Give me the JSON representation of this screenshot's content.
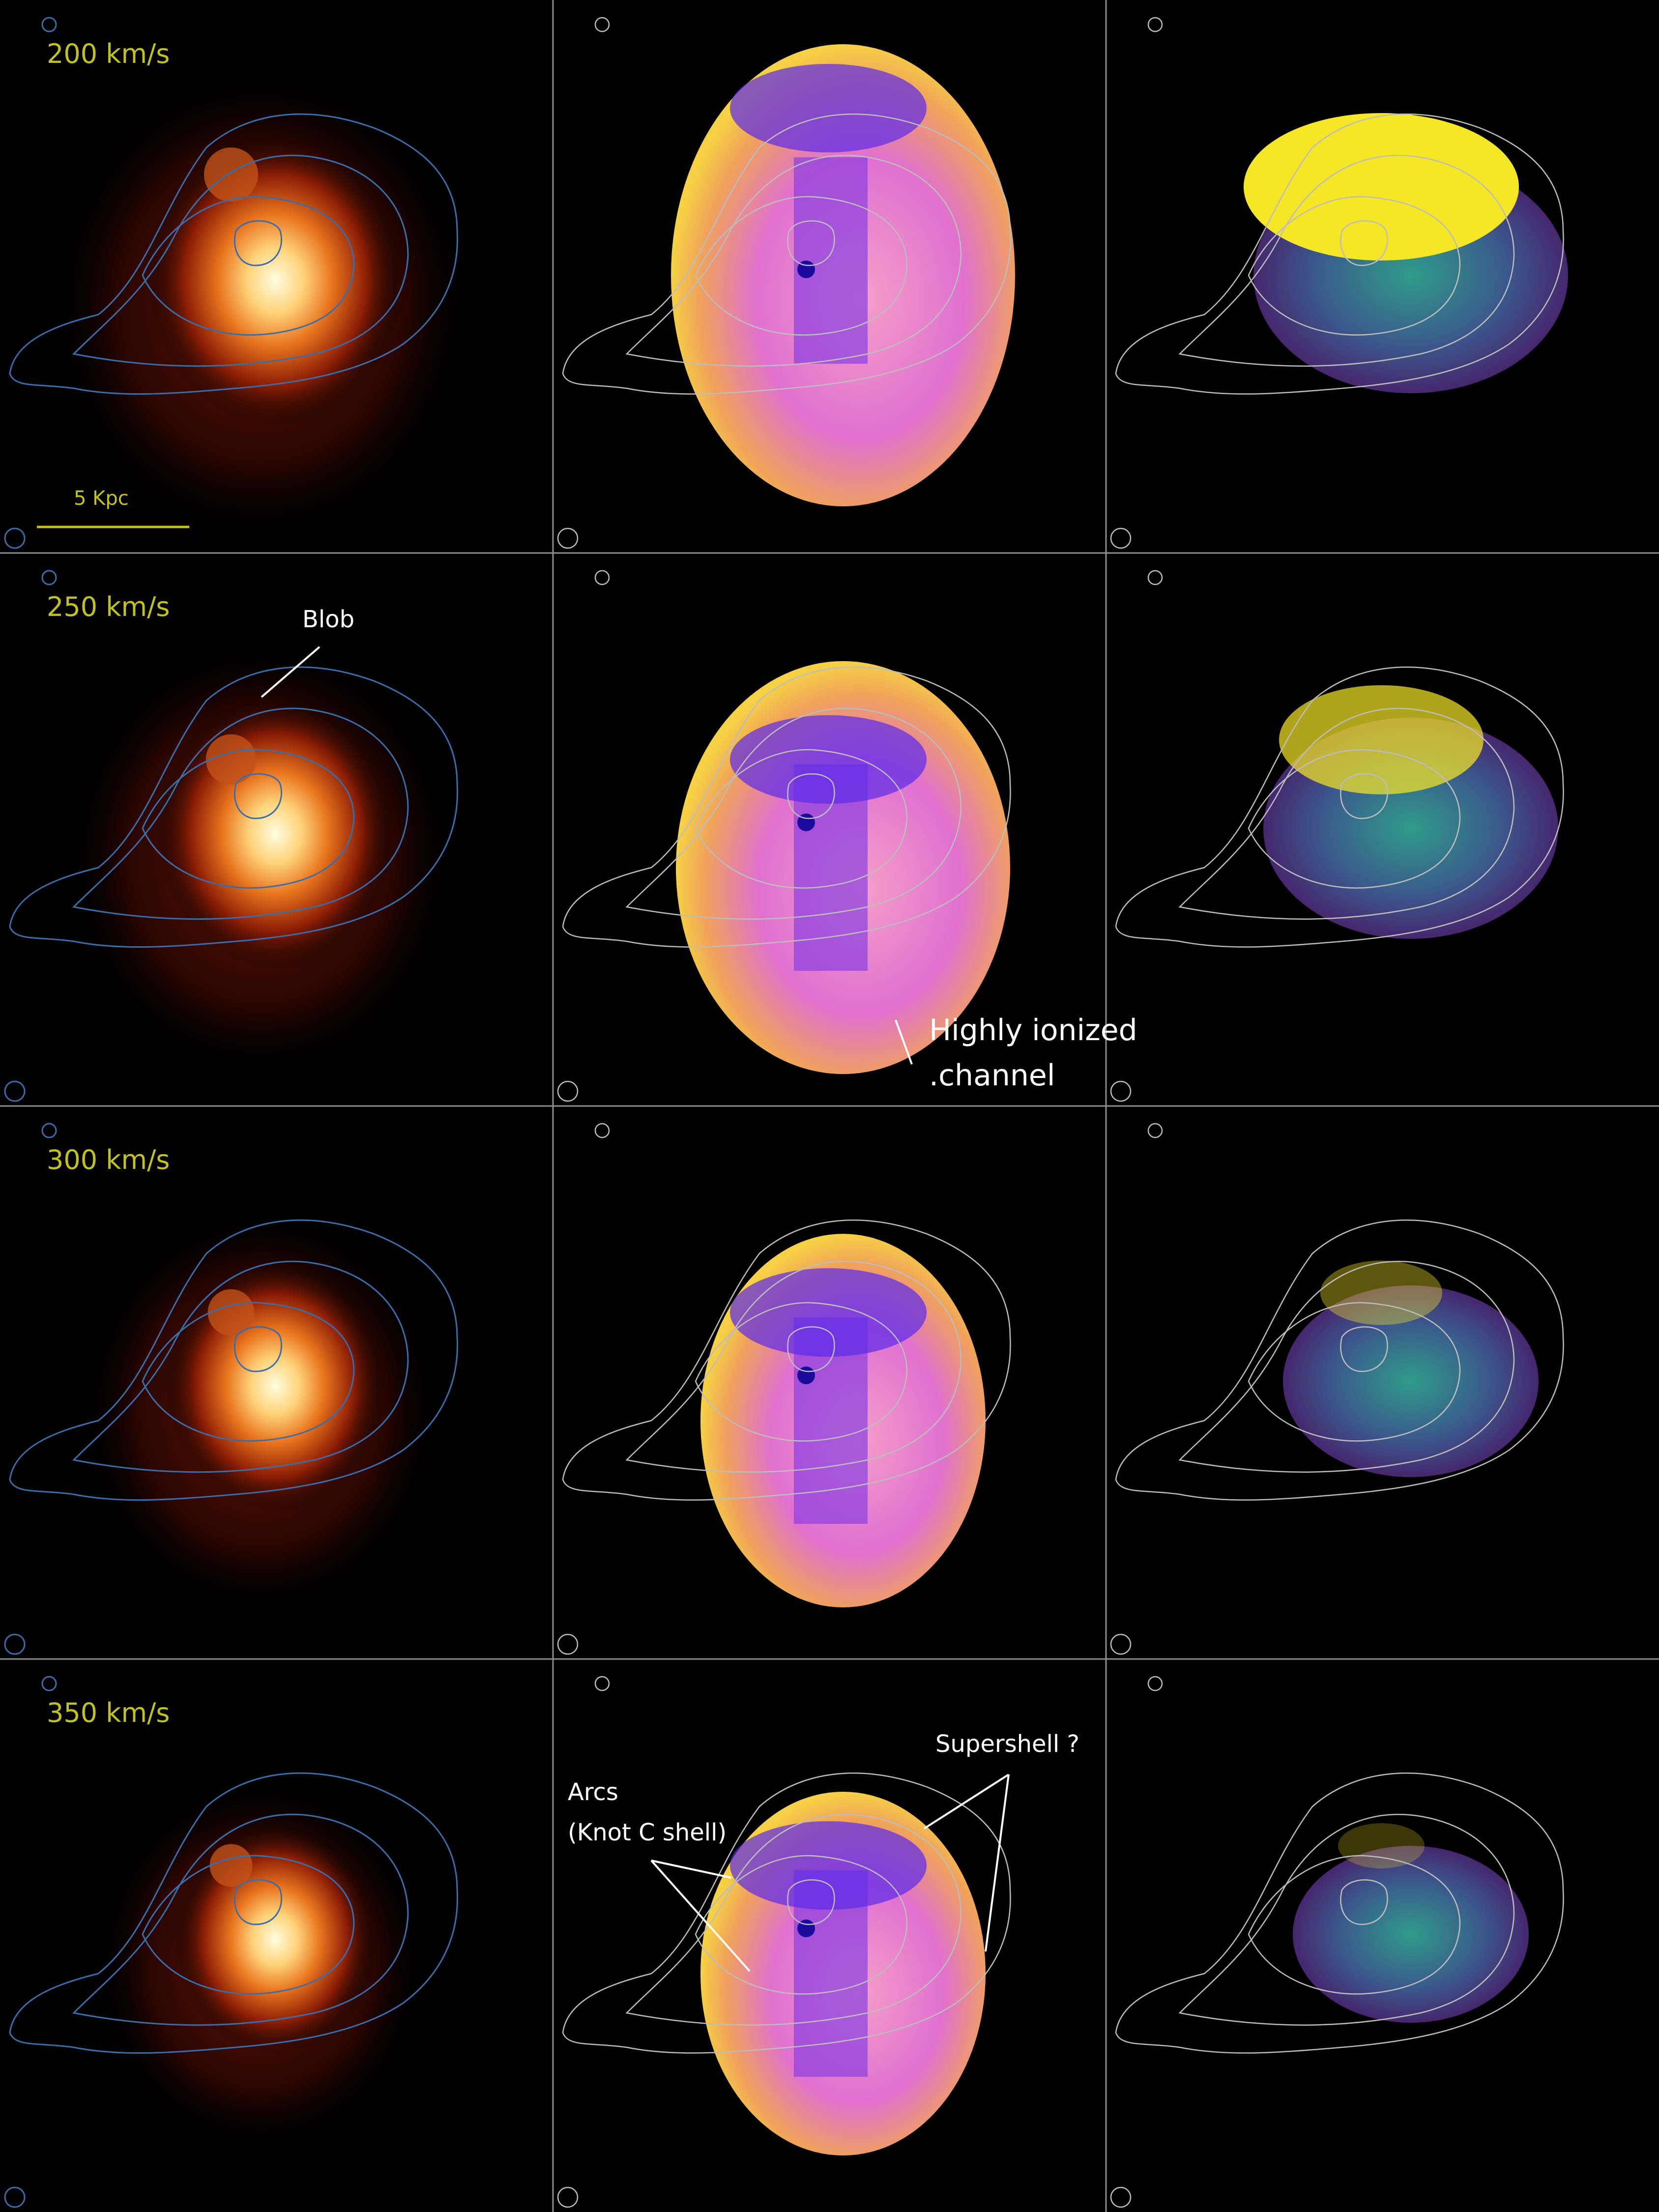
{
  "rows": [
    {
      "velocity_label": "200 km/s"
    },
    {
      "velocity_label": "250 km/s"
    },
    {
      "velocity_label": "300 km/s"
    },
    {
      "velocity_label": "350 km/s"
    }
  ],
  "scale_bar": {
    "label": "5 Kpc"
  },
  "annotations": {
    "blob": "Blob",
    "channel_line1": "Highly ionized",
    "channel_line2": ".channel",
    "arcs_line1": "Arcs",
    "arcs_line2": "(Knot C shell)",
    "supershell": "Supershell ?"
  },
  "colors": {
    "background": "#000000",
    "panel_border": "#8c8c8c",
    "velocity_text": "#c2c21f",
    "contour_left": "#3b6ea8",
    "contour_gray": "#bdbdbd",
    "annotation_text": "#ffffff"
  },
  "colormaps": {
    "left": "afmhot",
    "middle": "plasma",
    "right": "viridis"
  }
}
